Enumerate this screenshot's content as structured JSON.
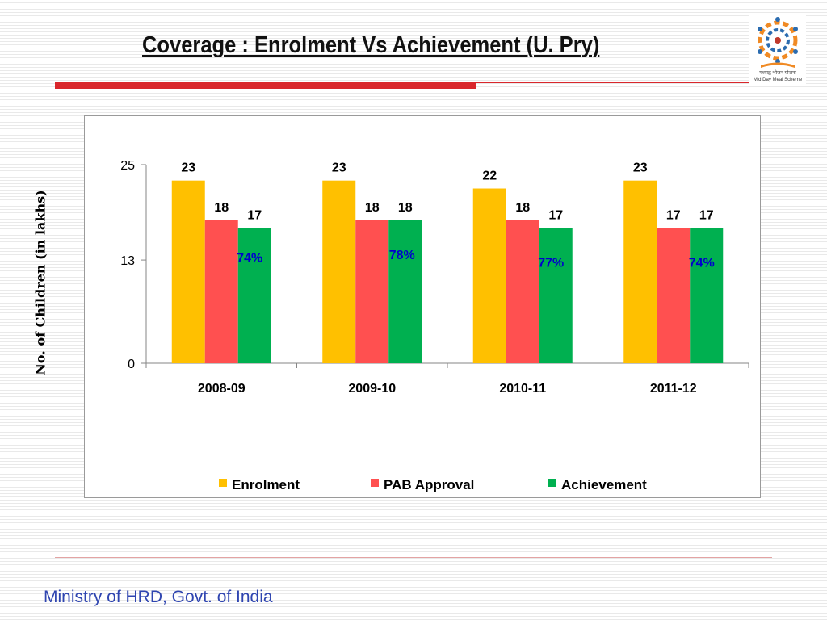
{
  "slide": {
    "title": "Coverage : Enrolment Vs Achievement (U. Pry)",
    "footer": "Ministry of HRD, Govt. of India",
    "logo_text": "मध्याह्न भोजन योजना",
    "logo_caption": "Mid Day Meal Scheme"
  },
  "colors": {
    "enrolment": "#ffc000",
    "pab_approval": "#ff5050",
    "achievement": "#00b050",
    "percent_label": "#0000cc",
    "title_rule": "#d9262b"
  },
  "chart_data": {
    "type": "bar",
    "title": "",
    "xlabel": "",
    "ylabel": "No. of Children (in lakhs)",
    "ylim": [
      0,
      25
    ],
    "yticks": [
      "0",
      "13",
      "25"
    ],
    "categories": [
      "2008-09",
      "2009-10",
      "2010-11",
      "2011-12"
    ],
    "series": [
      {
        "name": "Enrolment",
        "values": [
          23,
          23,
          22,
          23
        ],
        "labels": [
          "23",
          "23",
          "22",
          "23"
        ]
      },
      {
        "name": "PAB Approval",
        "values": [
          18,
          18,
          18,
          17
        ],
        "labels": [
          "18",
          "18",
          "18",
          "17"
        ]
      },
      {
        "name": "Achievement",
        "values": [
          17,
          18,
          17,
          17
        ],
        "labels": [
          "17",
          "18",
          "17",
          "17"
        ]
      }
    ],
    "achievement_percent": [
      "74%",
      "78%",
      "77%",
      "74%"
    ],
    "legend_position": "bottom",
    "grid": false
  }
}
